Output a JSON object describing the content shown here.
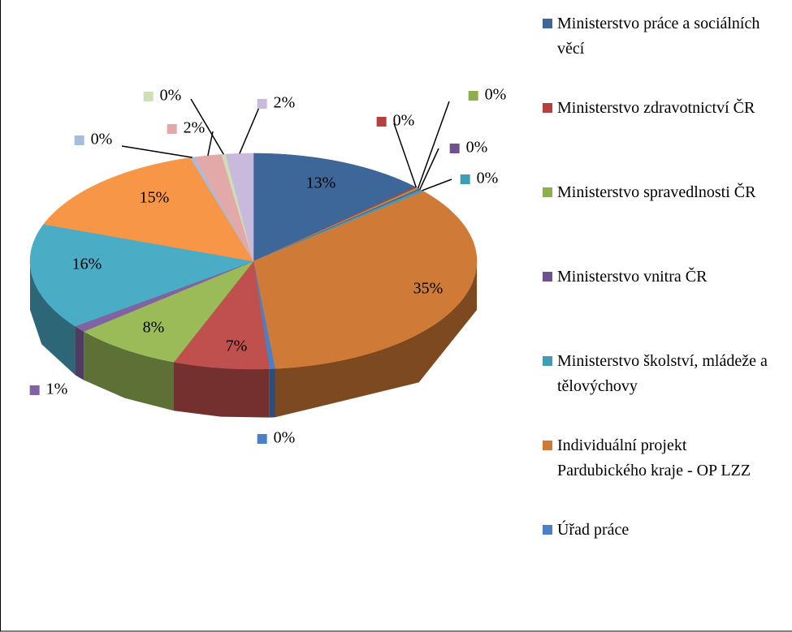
{
  "chart_data": {
    "type": "pie3d",
    "categories": [
      "Ministerstvo práce a sociálních věcí",
      "Ministerstvo zdravotnictví ČR",
      "Ministerstvo spravedlnosti ČR",
      "Ministerstvo vnitra ČR",
      "Ministerstvo školství, mládeže a tělovýchovy",
      "Individuální projekt Pardubického kraje - OP LZZ",
      "Úřad práce",
      null,
      null,
      null,
      null,
      null,
      null,
      null,
      null,
      null
    ],
    "values": [
      13,
      0.2,
      0.2,
      0.2,
      0.3,
      35,
      0.4,
      7,
      8,
      1,
      16,
      15,
      0.3,
      2,
      0.3,
      2
    ],
    "value_labels": [
      "13%",
      "0%",
      "0%",
      "0%",
      "0%",
      "35%",
      "0%",
      "7%",
      "8%",
      "1%",
      "16%",
      "15%",
      "0%",
      "2%",
      "0%",
      "2%"
    ],
    "colors": [
      "#3d6699",
      "#b5413f",
      "#8fae4f",
      "#6e5392",
      "#3f9db6",
      "#cf7a37",
      "#4a7fc9",
      "#c0504d",
      "#9bbb59",
      "#8064a2",
      "#4bacc6",
      "#f79646",
      "#a9bbdc",
      "#e3a9a8",
      "#cfdfb5",
      "#c9b9dc"
    ],
    "legend": "right"
  }
}
